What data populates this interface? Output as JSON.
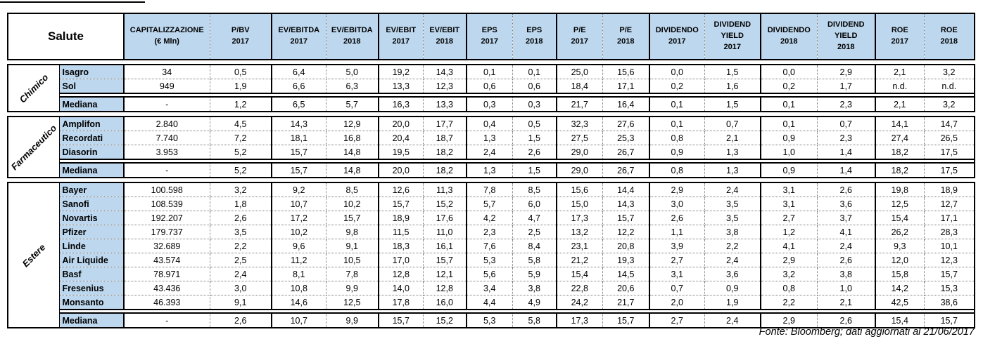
{
  "colors": {
    "header_bg": "#BDD7EE",
    "border": "#000000",
    "background": "#FFFFFF"
  },
  "chart_data": {
    "type": "table",
    "title": "Salute",
    "footer": "Fonte: Bloomberg; dati aggiornati al 21/06/2017",
    "columns": [
      [
        "CAPITALIZZAZIONE",
        "(€ Mln)"
      ],
      [
        "P/BV",
        "2017"
      ],
      [
        "EV/EBITDA",
        "2017"
      ],
      [
        "EV/EBITDA",
        "2018"
      ],
      [
        "EV/EBIT",
        "2017"
      ],
      [
        "EV/EBIT",
        "2018"
      ],
      [
        "EPS",
        "2017"
      ],
      [
        "EPS",
        "2018"
      ],
      [
        "P/E",
        "2017"
      ],
      [
        "P/E",
        "2018"
      ],
      [
        "DIVIDENDO",
        "2017"
      ],
      [
        "DIVIDEND",
        "YIELD",
        "2017"
      ],
      [
        "DIVIDENDO",
        "2018"
      ],
      [
        "DIVIDEND",
        "YIELD",
        "2018"
      ],
      [
        "ROE",
        "2017"
      ],
      [
        "ROE",
        "2018"
      ]
    ],
    "groups": [
      {
        "label": "Chimico",
        "companies": [
          {
            "name": "Isagro",
            "values": [
              "34",
              "0,5",
              "6,4",
              "5,0",
              "19,2",
              "14,3",
              "0,1",
              "0,1",
              "25,0",
              "15,6",
              "0,0",
              "1,5",
              "0,0",
              "2,9",
              "2,1",
              "3,2"
            ]
          },
          {
            "name": "Sol",
            "values": [
              "949",
              "1,9",
              "6,6",
              "6,3",
              "13,3",
              "12,3",
              "0,6",
              "0,6",
              "18,4",
              "17,1",
              "0,2",
              "1,6",
              "0,2",
              "1,7",
              "n.d.",
              "n.d."
            ]
          }
        ],
        "median": {
          "label": "Mediana",
          "values": [
            "-",
            "1,2",
            "6,5",
            "5,7",
            "16,3",
            "13,3",
            "0,3",
            "0,3",
            "21,7",
            "16,4",
            "0,1",
            "1,5",
            "0,1",
            "2,3",
            "2,1",
            "3,2"
          ]
        }
      },
      {
        "label": "Farmaceutico",
        "companies": [
          {
            "name": "Amplifon",
            "values": [
              "2.840",
              "4,5",
              "14,3",
              "12,9",
              "20,0",
              "17,7",
              "0,4",
              "0,5",
              "32,3",
              "27,6",
              "0,1",
              "0,7",
              "0,1",
              "0,7",
              "14,1",
              "14,7"
            ]
          },
          {
            "name": "Recordati",
            "values": [
              "7.740",
              "7,2",
              "18,1",
              "16,8",
              "20,4",
              "18,7",
              "1,3",
              "1,5",
              "27,5",
              "25,3",
              "0,8",
              "2,1",
              "0,9",
              "2,3",
              "27,4",
              "26,5"
            ]
          },
          {
            "name": "Diasorin",
            "values": [
              "3.953",
              "5,2",
              "15,7",
              "14,8",
              "19,5",
              "18,2",
              "2,4",
              "2,6",
              "29,0",
              "26,7",
              "0,9",
              "1,3",
              "1,0",
              "1,4",
              "18,2",
              "17,5"
            ]
          }
        ],
        "median": {
          "label": "Mediana",
          "values": [
            "-",
            "5,2",
            "15,7",
            "14,8",
            "20,0",
            "18,2",
            "1,3",
            "1,5",
            "29,0",
            "26,7",
            "0,8",
            "1,3",
            "0,9",
            "1,4",
            "18,2",
            "17,5"
          ]
        }
      },
      {
        "label": "Estere",
        "companies": [
          {
            "name": "Bayer",
            "values": [
              "100.598",
              "3,2",
              "9,2",
              "8,5",
              "12,6",
              "11,3",
              "7,8",
              "8,5",
              "15,6",
              "14,4",
              "2,9",
              "2,4",
              "3,1",
              "2,6",
              "19,8",
              "18,9"
            ]
          },
          {
            "name": "Sanofi",
            "values": [
              "108.539",
              "1,8",
              "10,7",
              "10,2",
              "15,7",
              "15,2",
              "5,7",
              "6,0",
              "15,0",
              "14,3",
              "3,0",
              "3,5",
              "3,1",
              "3,6",
              "12,5",
              "12,7"
            ]
          },
          {
            "name": "Novartis",
            "values": [
              "192.207",
              "2,6",
              "17,2",
              "15,7",
              "18,9",
              "17,6",
              "4,2",
              "4,7",
              "17,3",
              "15,7",
              "2,6",
              "3,5",
              "2,7",
              "3,7",
              "15,4",
              "17,1"
            ]
          },
          {
            "name": "Pfizer",
            "values": [
              "179.737",
              "3,5",
              "10,2",
              "9,8",
              "11,5",
              "11,0",
              "2,3",
              "2,5",
              "13,2",
              "12,2",
              "1,1",
              "3,8",
              "1,2",
              "4,1",
              "26,2",
              "28,3"
            ]
          },
          {
            "name": "Linde",
            "values": [
              "32.689",
              "2,2",
              "9,6",
              "9,1",
              "18,3",
              "16,1",
              "7,6",
              "8,4",
              "23,1",
              "20,8",
              "3,9",
              "2,2",
              "4,1",
              "2,4",
              "9,3",
              "10,1"
            ]
          },
          {
            "name": "Air Liquide",
            "values": [
              "43.574",
              "2,5",
              "11,2",
              "10,5",
              "17,0",
              "15,7",
              "5,3",
              "5,8",
              "21,2",
              "19,3",
              "2,7",
              "2,4",
              "2,9",
              "2,6",
              "12,0",
              "12,3"
            ]
          },
          {
            "name": "Basf",
            "values": [
              "78.971",
              "2,4",
              "8,1",
              "7,8",
              "12,8",
              "12,1",
              "5,6",
              "5,9",
              "15,4",
              "14,5",
              "3,1",
              "3,6",
              "3,2",
              "3,8",
              "15,8",
              "15,7"
            ]
          },
          {
            "name": "Fresenius",
            "values": [
              "43.436",
              "3,0",
              "10,8",
              "9,9",
              "14,0",
              "12,8",
              "3,4",
              "3,8",
              "22,8",
              "20,6",
              "0,7",
              "0,9",
              "0,8",
              "1,0",
              "14,2",
              "15,3"
            ]
          },
          {
            "name": "Monsanto",
            "values": [
              "46.393",
              "9,1",
              "14,6",
              "12,5",
              "17,8",
              "16,0",
              "4,4",
              "4,9",
              "24,2",
              "21,7",
              "2,0",
              "1,9",
              "2,2",
              "2,1",
              "42,5",
              "38,6"
            ]
          }
        ],
        "median": {
          "label": "Mediana",
          "values": [
            "-",
            "2,6",
            "10,7",
            "9,9",
            "15,7",
            "15,2",
            "5,3",
            "5,8",
            "17,3",
            "15,7",
            "2,7",
            "2,4",
            "2,9",
            "2,6",
            "15,4",
            "15,7"
          ]
        }
      }
    ]
  }
}
